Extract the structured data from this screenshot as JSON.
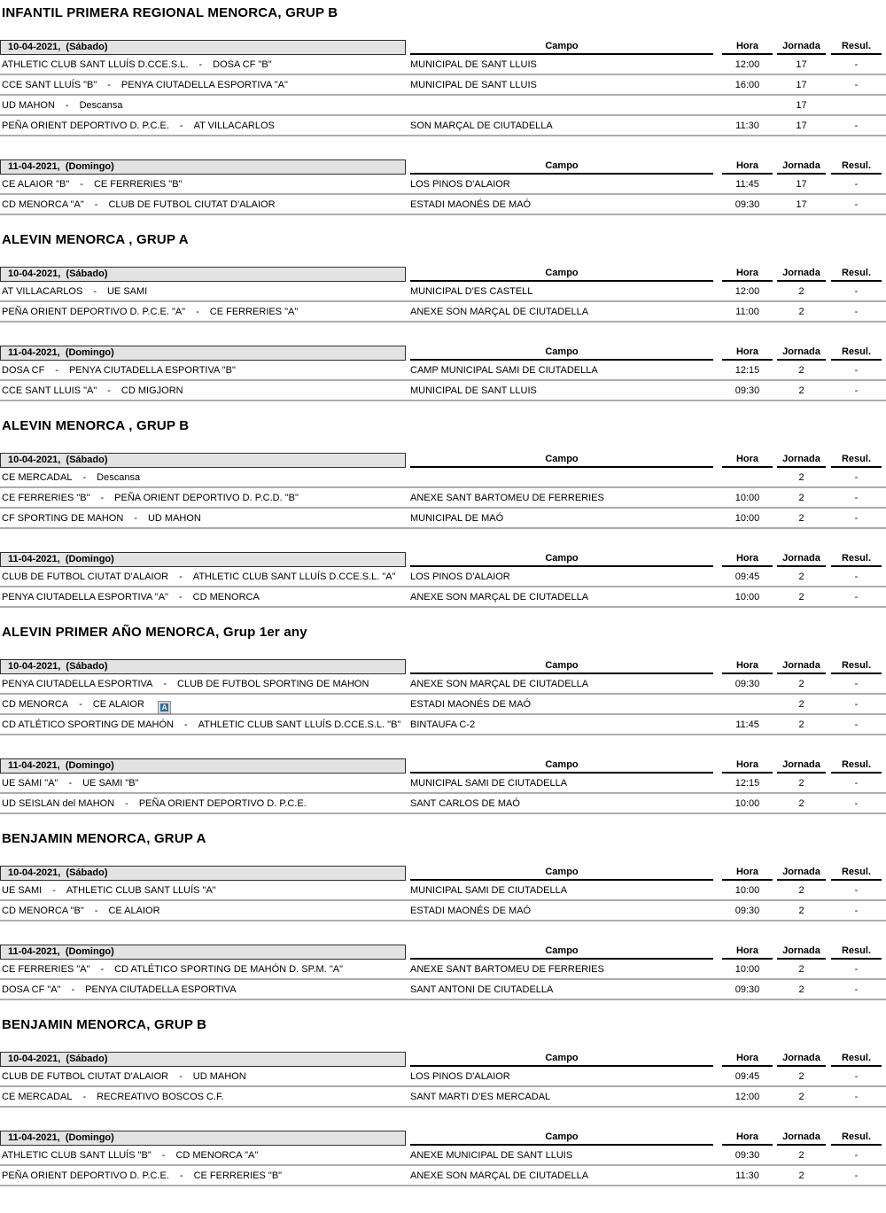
{
  "labels": {
    "vs_separator": "-"
  },
  "columns": {
    "campo": "Campo",
    "hora": "Hora",
    "jornada": "Jornada",
    "resul": "Resul."
  },
  "sections": [
    {
      "title": "INFANTIL PRIMERA REGIONAL MENORCA, GRUP B",
      "groups": [
        {
          "date_label": "10-04-2021,  (Sábado)",
          "matches": [
            {
              "home": "ATHLETIC CLUB SANT LLUÍS D.CCE.S.L.",
              "away": "DOSA CF \"B\"",
              "campo": "MUNICIPAL DE SANT LLUIS",
              "hora": "12:00",
              "jornada": "17",
              "resul": "-"
            },
            {
              "home": "CCE SANT LLUÍS \"B\"",
              "away": "PENYA CIUTADELLA ESPORTIVA \"A\"",
              "campo": "MUNICIPAL DE SANT LLUIS",
              "hora": "16:00",
              "jornada": "17",
              "resul": "-"
            },
            {
              "home": "UD MAHON",
              "away": "Descansa",
              "campo": "",
              "hora": "",
              "jornada": "17",
              "resul": ""
            },
            {
              "home": "PEÑA ORIENT DEPORTIVO D. P.C.E.",
              "away": "AT VILLACARLOS",
              "campo": "SON MARÇAL DE CIUTADELLA",
              "hora": "11:30",
              "jornada": "17",
              "resul": "-"
            }
          ]
        },
        {
          "date_label": "11-04-2021,  (Domingo)",
          "matches": [
            {
              "home": "CE ALAIOR \"B\"",
              "away": "CE FERRERIES \"B\"",
              "campo": "LOS PINOS D'ALAIOR",
              "hora": "11:45",
              "jornada": "17",
              "resul": "-"
            },
            {
              "home": "CD MENORCA \"A\"",
              "away": "CLUB DE FUTBOL CIUTAT D'ALAIOR",
              "campo": "ESTADI MAONÉS DE MAÓ",
              "hora": "09:30",
              "jornada": "17",
              "resul": "-"
            }
          ]
        }
      ]
    },
    {
      "title": "ALEVIN MENORCA , GRUP A",
      "groups": [
        {
          "date_label": "10-04-2021,  (Sábado)",
          "matches": [
            {
              "home": "AT VILLACARLOS",
              "away": "UE SAMI",
              "campo": "MUNICIPAL D'ES CASTELL",
              "hora": "12:00",
              "jornada": "2",
              "resul": "-"
            },
            {
              "home": "PEÑA ORIENT DEPORTIVO D. P.C.E. \"A\"",
              "away": "CE FERRERIES \"A\"",
              "campo": "ANEXE SON MARÇAL DE CIUTADELLA",
              "hora": "11:00",
              "jornada": "2",
              "resul": "-"
            }
          ]
        },
        {
          "date_label": "11-04-2021,  (Domingo)",
          "matches": [
            {
              "home": "DOSA CF",
              "away": "PENYA CIUTADELLA ESPORTIVA \"B\"",
              "campo": "CAMP MUNICIPAL SAMI DE CIUTADELLA",
              "hora": "12:15",
              "jornada": "2",
              "resul": "-"
            },
            {
              "home": "CCE SANT LLUIS \"A\"",
              "away": "CD MIGJORN",
              "campo": "MUNICIPAL DE SANT LLUIS",
              "hora": "09:30",
              "jornada": "2",
              "resul": "-"
            }
          ]
        }
      ]
    },
    {
      "title": "ALEVIN MENORCA , GRUP B",
      "groups": [
        {
          "date_label": "10-04-2021,  (Sábado)",
          "matches": [
            {
              "home": "CE MERCADAL",
              "away": "Descansa",
              "campo": "",
              "hora": "",
              "jornada": "2",
              "resul": "-"
            },
            {
              "home": "CE FERRERIES \"B\"",
              "away": "PEÑA ORIENT DEPORTIVO D. P.C.D. \"B\"",
              "campo": "ANEXE SANT BARTOMEU DE FERRERIES",
              "hora": "10:00",
              "jornada": "2",
              "resul": "-"
            },
            {
              "home": "CF SPORTING DE MAHON",
              "away": "UD MAHON",
              "campo": "MUNICIPAL DE MAÓ",
              "hora": "10:00",
              "jornada": "2",
              "resul": "-"
            }
          ]
        },
        {
          "date_label": "11-04-2021,  (Domingo)",
          "matches": [
            {
              "home": "CLUB DE FUTBOL CIUTAT D'ALAIOR",
              "away": "ATHLETIC CLUB SANT LLUÍS D.CCE.S.L. \"A\"",
              "campo": "LOS PINOS D'ALAIOR",
              "hora": "09:45",
              "jornada": "2",
              "resul": "-"
            },
            {
              "home": "PENYA CIUTADELLA ESPORTIVA \"A\"",
              "away": "CD MENORCA",
              "campo": "ANEXE SON MARÇAL DE CIUTADELLA",
              "hora": "10:00",
              "jornada": "2",
              "resul": "-"
            }
          ]
        }
      ]
    },
    {
      "title": "ALEVIN PRIMER AÑO MENORCA, Grup 1er any",
      "groups": [
        {
          "date_label": "10-04-2021,  (Sábado)",
          "matches": [
            {
              "home": "PENYA CIUTADELLA ESPORTIVA",
              "away": "CLUB DE FUTBOL SPORTING DE MAHON",
              "campo": "ANEXE SON MARÇAL DE CIUTADELLA",
              "hora": "09:30",
              "jornada": "2",
              "resul": "-"
            },
            {
              "home": "CD MENORCA",
              "away": "CE ALAIOR",
              "icon": "A",
              "campo": "ESTADI MAONÉS DE MAÓ",
              "hora": "",
              "jornada": "2",
              "resul": "-"
            },
            {
              "home": "CD ATLÉTICO SPORTING DE MAHÓN",
              "away": "ATHLETIC CLUB SANT LLUÍS D.CCE.S.L. \"B\"",
              "campo": "BINTAUFA C-2",
              "hora": "11:45",
              "jornada": "2",
              "resul": "-"
            }
          ]
        },
        {
          "date_label": "11-04-2021,  (Domingo)",
          "matches": [
            {
              "home": "UE SAMI \"A\"",
              "away": "UE SAMI \"B\"",
              "campo": "MUNICIPAL SAMI DE CIUTADELLA",
              "hora": "12:15",
              "jornada": "2",
              "resul": "-"
            },
            {
              "home": "UD SEISLAN del MAHON",
              "away": "PEÑA ORIENT DEPORTIVO D. P.C.E.",
              "campo": "SANT CARLOS DE MAÓ",
              "hora": "10:00",
              "jornada": "2",
              "resul": "-"
            }
          ]
        }
      ]
    },
    {
      "title": "BENJAMIN MENORCA, GRUP A",
      "groups": [
        {
          "date_label": "10-04-2021,  (Sábado)",
          "matches": [
            {
              "home": "UE SAMI",
              "away": "ATHLETIC CLUB SANT LLUÍS \"A\"",
              "campo": "MUNICIPAL SAMI DE CIUTADELLA",
              "hora": "10:00",
              "jornada": "2",
              "resul": "-"
            },
            {
              "home": "CD MENORCA \"B\"",
              "away": "CE ALAIOR",
              "campo": "ESTADI MAONÉS DE MAÓ",
              "hora": "09:30",
              "jornada": "2",
              "resul": "-"
            }
          ]
        },
        {
          "date_label": "11-04-2021,  (Domingo)",
          "matches": [
            {
              "home": "CE FERRERIES \"A\"",
              "away": "CD ATLÉTICO SPORTING DE MAHÓN D. SP.M. \"A\"",
              "campo": "ANEXE SANT BARTOMEU DE FERRERIES",
              "hora": "10:00",
              "jornada": "2",
              "resul": "-"
            },
            {
              "home": "DOSA CF \"A\"",
              "away": "PENYA CIUTADELLA ESPORTIVA",
              "campo": "SANT ANTONI DE CIUTADELLA",
              "hora": "09:30",
              "jornada": "2",
              "resul": "-"
            }
          ]
        }
      ]
    },
    {
      "title": "BENJAMIN MENORCA, GRUP B",
      "groups": [
        {
          "date_label": "10-04-2021,  (Sábado)",
          "matches": [
            {
              "home": "CLUB DE FUTBOL CIUTAT D'ALAIOR",
              "away": "UD MAHON",
              "campo": "LOS PINOS D'ALAIOR",
              "hora": "09:45",
              "jornada": "2",
              "resul": "-"
            },
            {
              "home": "CE MERCADAL",
              "away": "RECREATIVO BOSCOS C.F.",
              "campo": "SANT MARTI D'ES MERCADAL",
              "hora": "12:00",
              "jornada": "2",
              "resul": "-"
            }
          ]
        },
        {
          "date_label": "11-04-2021,  (Domingo)",
          "matches": [
            {
              "home": "ATHLETIC CLUB SANT LLUÍS \"B\"",
              "away": "CD MENORCA \"A\"",
              "campo": "ANEXE MUNICIPAL DE SANT LLUIS",
              "hora": "09:30",
              "jornada": "2",
              "resul": "-"
            },
            {
              "home": "PEÑA ORIENT DEPORTIVO D. P.C.E.",
              "away": "CE FERRERIES \"B\"",
              "campo": "ANEXE SON MARÇAL DE CIUTADELLA",
              "hora": "11:30",
              "jornada": "2",
              "resul": "-"
            }
          ]
        }
      ]
    }
  ]
}
